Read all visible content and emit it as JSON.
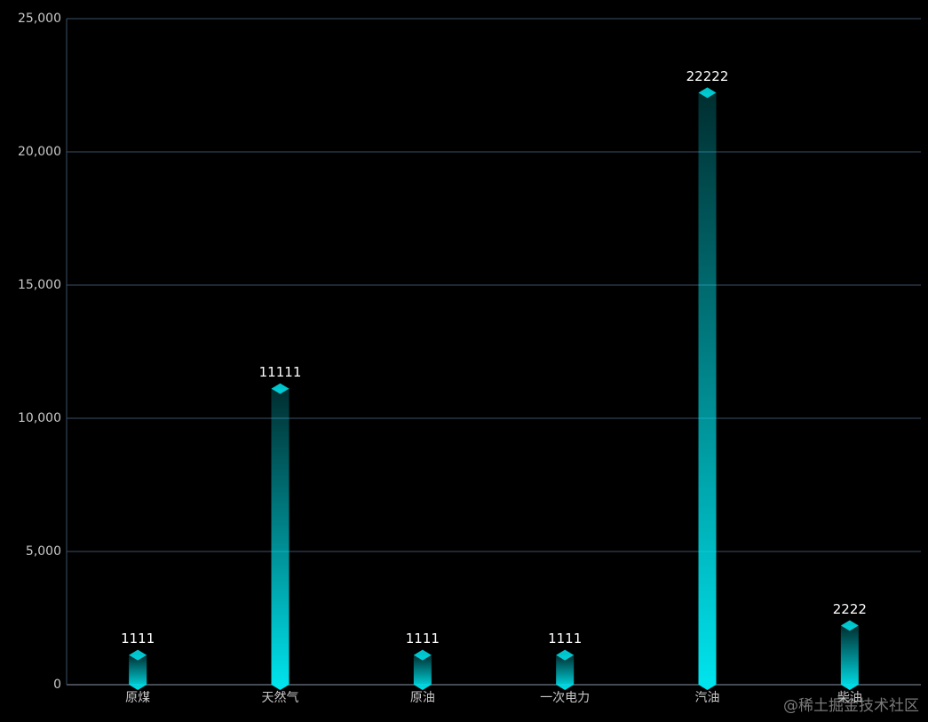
{
  "chart_data": {
    "type": "bar",
    "categories": [
      "原煤",
      "天然气",
      "原油",
      "一次电力",
      "汽油",
      "柴油"
    ],
    "values": [
      1111,
      11111,
      1111,
      1111,
      22222,
      2222
    ],
    "color": "#00e5ef",
    "ylim": [
      0,
      25000
    ],
    "yticks": [
      0,
      {
        "value": 5000,
        "label": "5,000"
      },
      {
        "value": 10000,
        "label": "10,000"
      },
      {
        "value": 15000,
        "label": "15,000"
      },
      {
        "value": 20000,
        "label": "20,000"
      },
      {
        "value": 25000,
        "label": "25,000"
      }
    ],
    "grid": true,
    "watermark": "@稀土掘金技术社区"
  }
}
